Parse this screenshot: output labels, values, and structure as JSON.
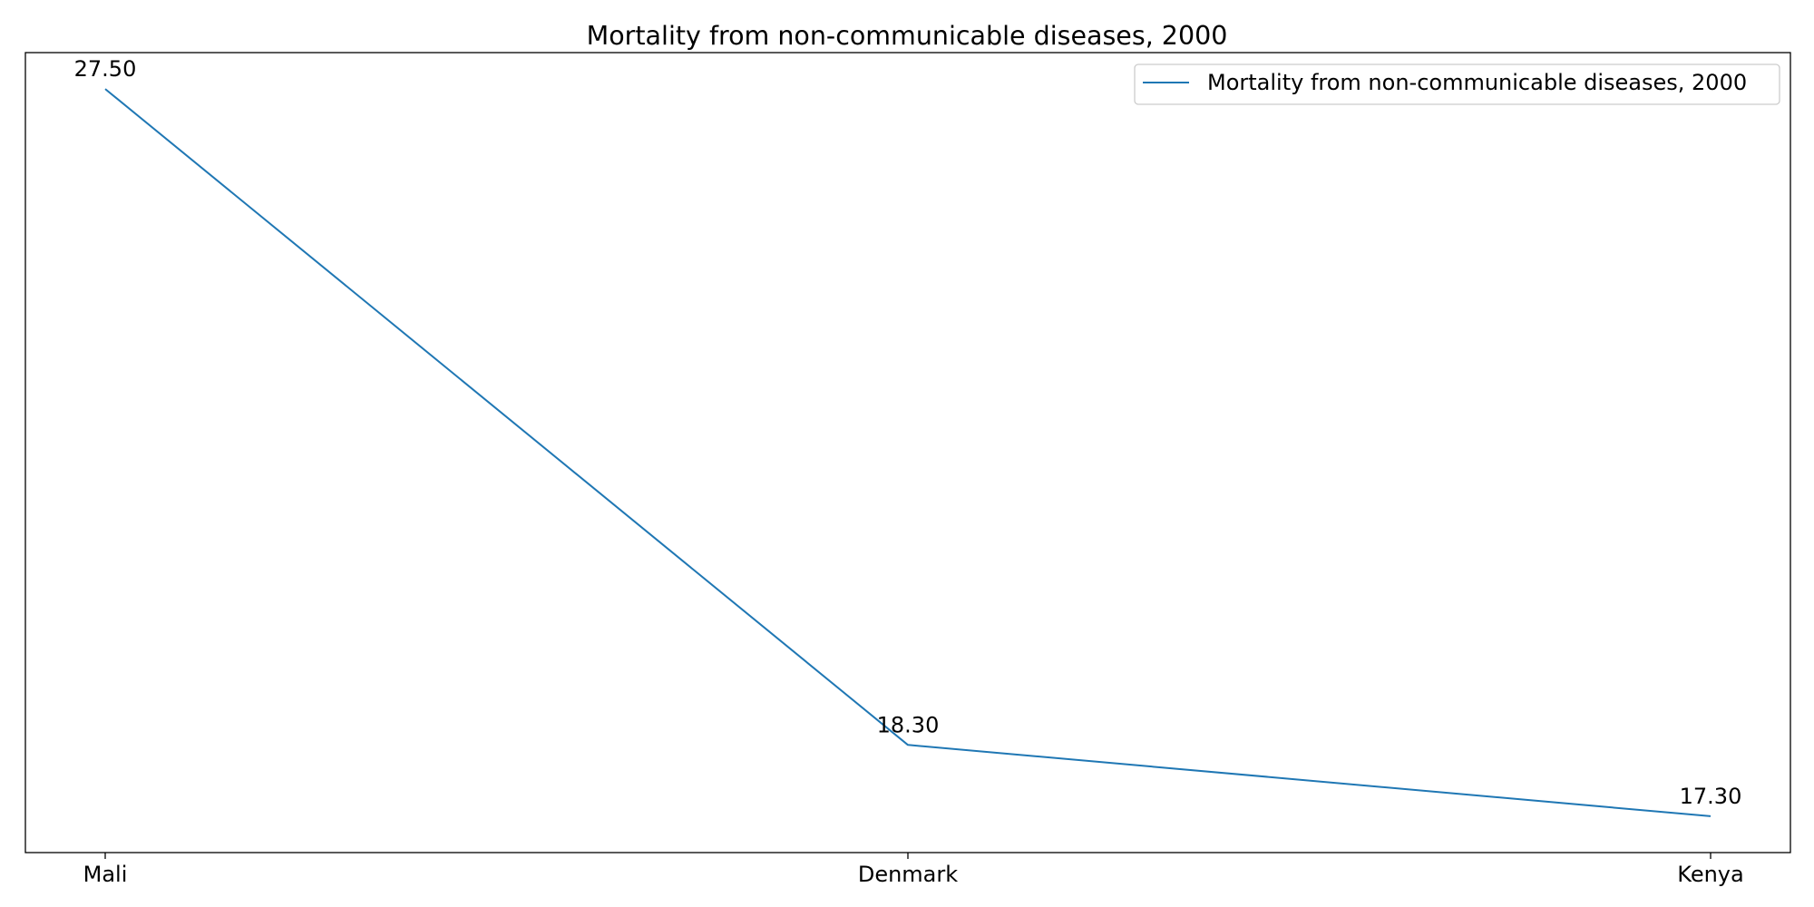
{
  "chart_data": {
    "type": "line",
    "title": "Mortality from non-communicable diseases, 2000",
    "xlabel": "",
    "ylabel": "",
    "categories": [
      "Mali",
      "Denmark",
      "Kenya"
    ],
    "series": [
      {
        "name": "Mortality from non-communicable diseases, 2000",
        "values": [
          27.5,
          18.3,
          17.3
        ],
        "labels": [
          "27.50",
          "18.30",
          "17.30"
        ],
        "color": "#1f77b4"
      }
    ],
    "ylim": [
      16.79,
      28.01
    ],
    "y_ticks_visible": false,
    "grid": false,
    "legend_position": "top-right"
  }
}
